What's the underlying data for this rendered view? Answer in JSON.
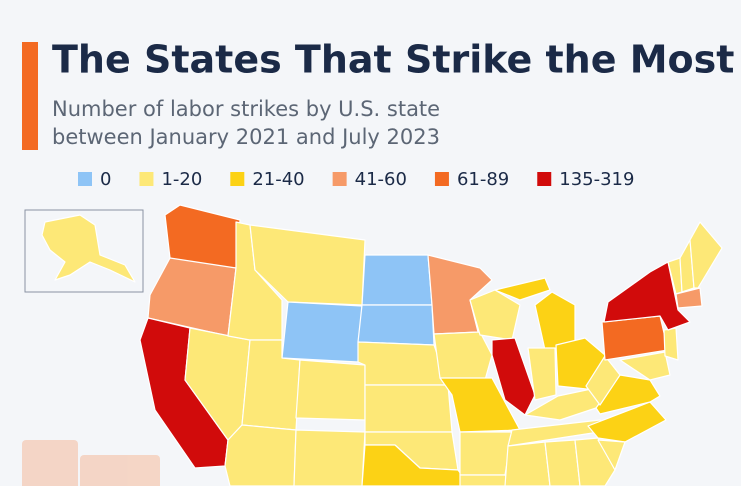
{
  "chart_data": {
    "type": "choropleth",
    "title": "The States That Strike the Most",
    "subtitle": [
      "Number of labor strikes by U.S. state",
      "between January 2021 and July 2023"
    ],
    "legend": [
      {
        "label": "0",
        "color": "#8ec4f6"
      },
      {
        "label": "1-20",
        "color": "#fde877"
      },
      {
        "label": "21-40",
        "color": "#fcd215"
      },
      {
        "label": "41-60",
        "color": "#f69a68"
      },
      {
        "label": "61-89",
        "color": "#f36a22"
      },
      {
        "label": "135-319",
        "color": "#d10b0b"
      }
    ]
  }
}
